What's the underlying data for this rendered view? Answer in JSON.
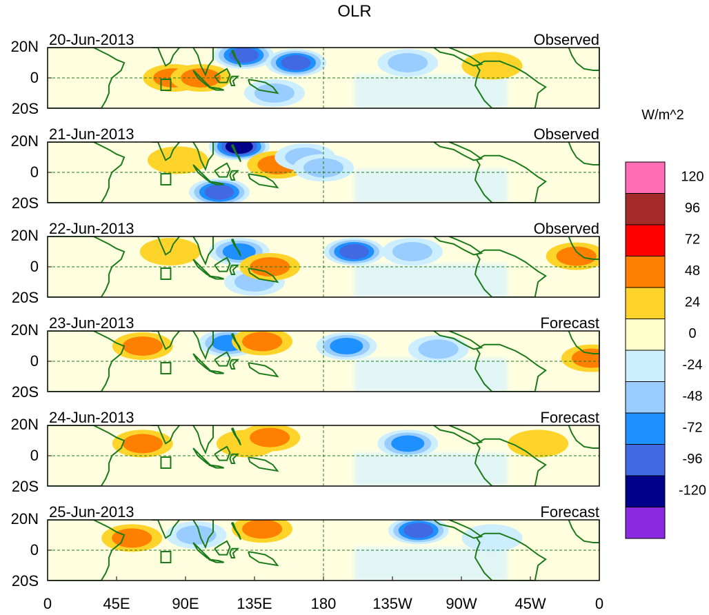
{
  "chart_data": {
    "type": "heatmap",
    "title": "OLR",
    "units": "W/m^2",
    "xlabel": "",
    "ylabel": "",
    "x_ticks": [
      "0",
      "45E",
      "90E",
      "135E",
      "180",
      "135W",
      "90W",
      "45W",
      "0"
    ],
    "x_range": [
      0,
      360
    ],
    "y_ticks": [
      "20N",
      "0",
      "20S"
    ],
    "y_range": [
      -20,
      20
    ],
    "colorbar": {
      "levels": [
        "120",
        "96",
        "72",
        "48",
        "24",
        "0",
        "-24",
        "-48",
        "-72",
        "-96",
        "-120"
      ],
      "colors": [
        "#ff6eb4",
        "#a52a2a",
        "#ff0000",
        "#ff7f00",
        "#ffd42a",
        "#ffffcc",
        "#cceeff",
        "#99ccff",
        "#1e90ff",
        "#4169e1",
        "#00008b",
        "#8a2be2"
      ]
    },
    "panels": [
      {
        "date": "20-Jun-2013",
        "label": "Observed",
        "anomalies": [
          {
            "lon": 82,
            "lat": 0,
            "value": 60
          },
          {
            "lon": 100,
            "lat": 0,
            "value": 50
          },
          {
            "lon": 128,
            "lat": 15,
            "value": -100
          },
          {
            "lon": 162,
            "lat": 10,
            "value": -110
          },
          {
            "lon": 148,
            "lat": -10,
            "value": -60
          },
          {
            "lon": 235,
            "lat": 10,
            "value": -50
          },
          {
            "lon": 290,
            "lat": 8,
            "value": 40
          }
        ]
      },
      {
        "date": "21-Jun-2013",
        "label": "Observed",
        "anomalies": [
          {
            "lon": 125,
            "lat": 17,
            "value": -120
          },
          {
            "lon": 112,
            "lat": -13,
            "value": -100
          },
          {
            "lon": 150,
            "lat": 5,
            "value": 50
          },
          {
            "lon": 168,
            "lat": 10,
            "value": -60
          },
          {
            "lon": 180,
            "lat": 3,
            "value": -50
          },
          {
            "lon": 85,
            "lat": 8,
            "value": 40
          }
        ]
      },
      {
        "date": "22-Jun-2013",
        "label": "Observed",
        "anomalies": [
          {
            "lon": 80,
            "lat": 10,
            "value": 30
          },
          {
            "lon": 125,
            "lat": 10,
            "value": -90
          },
          {
            "lon": 135,
            "lat": -10,
            "value": -60
          },
          {
            "lon": 145,
            "lat": 0,
            "value": 50
          },
          {
            "lon": 200,
            "lat": 10,
            "value": -110
          },
          {
            "lon": 238,
            "lat": 10,
            "value": -70
          },
          {
            "lon": 345,
            "lat": 7,
            "value": 60
          }
        ]
      },
      {
        "date": "23-Jun-2013",
        "label": "Forecast",
        "anomalies": [
          {
            "lon": 62,
            "lat": 10,
            "value": 60
          },
          {
            "lon": 118,
            "lat": 12,
            "value": -80
          },
          {
            "lon": 140,
            "lat": 13,
            "value": 60
          },
          {
            "lon": 195,
            "lat": 10,
            "value": -90
          },
          {
            "lon": 255,
            "lat": 8,
            "value": -70
          },
          {
            "lon": 355,
            "lat": 2,
            "value": 60
          }
        ]
      },
      {
        "date": "24-Jun-2013",
        "label": "Forecast",
        "anomalies": [
          {
            "lon": 62,
            "lat": 8,
            "value": 60
          },
          {
            "lon": 130,
            "lat": 8,
            "value": 40
          },
          {
            "lon": 145,
            "lat": 12,
            "value": 60
          },
          {
            "lon": 235,
            "lat": 8,
            "value": -80
          },
          {
            "lon": 320,
            "lat": 8,
            "value": 30
          }
        ]
      },
      {
        "date": "25-Jun-2013",
        "label": "Forecast",
        "anomalies": [
          {
            "lon": 55,
            "lat": 8,
            "value": 60
          },
          {
            "lon": 97,
            "lat": 10,
            "value": -50
          },
          {
            "lon": 140,
            "lat": 14,
            "value": 60
          },
          {
            "lon": 242,
            "lat": 13,
            "value": -110
          },
          {
            "lon": 290,
            "lat": 8,
            "value": -40
          }
        ]
      }
    ]
  }
}
